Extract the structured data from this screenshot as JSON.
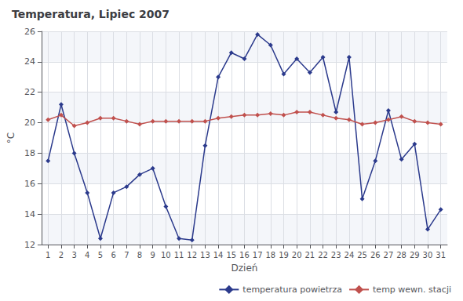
{
  "chart_data": {
    "type": "line",
    "title": "Temperatura, Lipiec 2007",
    "xlabel": "Dzień",
    "ylabel": "°C",
    "x": [
      1,
      2,
      3,
      4,
      5,
      6,
      7,
      8,
      9,
      10,
      11,
      12,
      13,
      14,
      15,
      16,
      17,
      18,
      19,
      20,
      21,
      22,
      23,
      24,
      25,
      26,
      27,
      28,
      29,
      30,
      31
    ],
    "series": [
      {
        "name": "temperatura powietrza",
        "color": "#2b3a8c",
        "marker": "diamond",
        "values": [
          17.5,
          21.2,
          18.0,
          15.4,
          12.4,
          15.4,
          15.8,
          16.6,
          17.0,
          14.5,
          12.4,
          12.3,
          18.5,
          23.0,
          24.6,
          24.2,
          25.8,
          25.1,
          23.2,
          24.2,
          23.3,
          24.3,
          20.7,
          24.3,
          15.0,
          17.5,
          20.8,
          17.6,
          18.6,
          13.0,
          14.3
        ]
      },
      {
        "name": "temp wewn. stacji",
        "color": "#c0504d",
        "marker": "diamond",
        "values": [
          20.2,
          20.5,
          19.8,
          20.0,
          20.3,
          20.3,
          20.1,
          19.9,
          20.1,
          20.1,
          20.1,
          20.1,
          20.1,
          20.3,
          20.4,
          20.5,
          20.5,
          20.6,
          20.5,
          20.7,
          20.7,
          20.5,
          20.3,
          20.2,
          19.9,
          20.0,
          20.2,
          20.4,
          20.1,
          20.0,
          19.9
        ]
      }
    ],
    "xlim": [
      0.5,
      31.5
    ],
    "xticks": [
      1,
      2,
      3,
      4,
      5,
      6,
      7,
      8,
      9,
      10,
      11,
      12,
      13,
      14,
      15,
      16,
      17,
      18,
      19,
      20,
      21,
      22,
      23,
      24,
      25,
      26,
      27,
      28,
      29,
      30,
      31
    ],
    "ylim": [
      12,
      26
    ],
    "yticks": [
      12,
      14,
      16,
      18,
      20,
      22,
      24,
      26
    ],
    "grid": true,
    "legend": "lower right"
  }
}
